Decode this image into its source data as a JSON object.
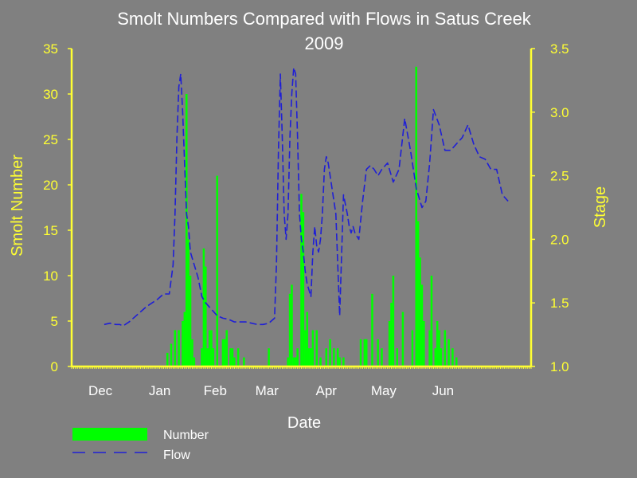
{
  "chart_data": {
    "type": "bar",
    "title_line1": "Smolt Numbers Compared with Flows in Satus Creek",
    "title_line2": "2009",
    "xlabel": "Date",
    "ylabel_left": "Smolt Number",
    "ylabel_right": "Stage",
    "ylim_left": [
      0,
      35
    ],
    "ylim_right": [
      1.0,
      3.5
    ],
    "yticks_left": [
      "0",
      "5",
      "10",
      "15",
      "20",
      "25",
      "30",
      "35"
    ],
    "yticks_right": [
      "1.0",
      "1.5",
      "2.0",
      "2.5",
      "3.0",
      "3.5"
    ],
    "months": [
      "Dec",
      "Jan",
      "Feb",
      "Mar",
      "Apr",
      "May",
      "Jun"
    ],
    "legend_position": "bottom-left",
    "colors": {
      "bars": "#00ff00",
      "flow": "#1f1fd6",
      "axis": "#ffff33",
      "background": "#808080"
    },
    "series": [
      {
        "name": "Number",
        "kind": "bar",
        "axis": "left",
        "x": [
          110,
          112,
          114,
          116,
          118,
          119,
          120,
          121,
          122,
          123,
          124,
          125,
          128,
          129,
          130,
          131,
          132,
          133,
          134,
          136,
          139,
          140,
          141,
          143,
          144,
          145,
          147,
          150,
          153,
          163,
          173,
          174,
          175,
          176,
          177,
          178,
          180,
          181,
          182,
          183,
          184,
          185,
          186,
          188,
          190,
          193,
          195,
          197,
          199,
          200,
          202,
          205,
          211,
          213,
          214,
          217,
          220,
          222,
          224,
          226,
          227,
          228,
          230,
          233,
          236,
          238,
          240,
          241,
          242,
          243,
          244,
          246,
          247,
          248,
          250,
          251,
          252,
          253,
          255,
          257,
          259,
          261
        ],
        "values": [
          1.5,
          2.5,
          4,
          4,
          5,
          6,
          30,
          14,
          10,
          3,
          1,
          0,
          2,
          13,
          11,
          2,
          4,
          4,
          2,
          21,
          3,
          3,
          4,
          2,
          2,
          1,
          2,
          1,
          0,
          2,
          1,
          8,
          9,
          1,
          1,
          2,
          19,
          17,
          4,
          6,
          2,
          2,
          4,
          4,
          1,
          2,
          3,
          2,
          2,
          1,
          1,
          0,
          3,
          3,
          3,
          8,
          3,
          2,
          0,
          5,
          7,
          10,
          2,
          6,
          0,
          4,
          33,
          16,
          12,
          9,
          5,
          0,
          4,
          10,
          2,
          5,
          4,
          2,
          4,
          3,
          2,
          1
        ]
      },
      {
        "name": "Flow",
        "kind": "line",
        "axis": "right",
        "x": [
          77,
          80,
          83,
          85,
          87,
          90,
          93,
          96,
          99,
          102,
          105,
          108,
          111,
          113,
          114,
          115,
          116,
          117,
          118,
          119,
          120,
          121,
          122,
          124,
          126,
          128,
          130,
          133,
          136,
          139,
          142,
          145,
          148,
          151,
          154,
          157,
          160,
          163,
          166,
          167,
          168,
          169,
          170,
          171,
          172,
          173,
          174,
          175,
          176,
          177,
          178,
          179,
          180,
          181,
          182,
          183,
          184,
          185,
          186,
          187,
          188,
          189,
          190,
          191,
          192,
          193,
          194,
          196,
          198,
          200,
          202,
          204,
          205,
          206,
          207,
          208,
          210,
          212,
          214,
          216,
          218,
          220,
          222,
          225,
          228,
          231,
          234,
          237,
          240,
          243,
          245,
          247,
          249,
          252,
          255,
          258,
          261,
          264,
          267,
          270,
          273,
          276,
          279,
          282,
          285,
          288
        ],
        "values": [
          1.33,
          1.34,
          1.33,
          1.33,
          1.32,
          1.35,
          1.39,
          1.43,
          1.47,
          1.5,
          1.53,
          1.57,
          1.57,
          1.8,
          2.2,
          2.8,
          3.2,
          3.3,
          3.0,
          2.6,
          2.2,
          2.1,
          1.9,
          1.8,
          1.7,
          1.55,
          1.5,
          1.45,
          1.4,
          1.38,
          1.37,
          1.35,
          1.35,
          1.35,
          1.34,
          1.33,
          1.33,
          1.34,
          1.38,
          1.8,
          2.7,
          3.3,
          2.8,
          2.2,
          2.0,
          2.2,
          2.8,
          3.15,
          3.35,
          3.3,
          2.8,
          2.2,
          2.0,
          1.9,
          1.75,
          1.65,
          1.6,
          1.55,
          1.9,
          2.1,
          1.95,
          1.9,
          2.0,
          2.2,
          2.55,
          2.65,
          2.6,
          2.4,
          2.2,
          1.4,
          2.35,
          2.2,
          2.1,
          2.05,
          2.1,
          2.05,
          2.0,
          2.3,
          2.55,
          2.58,
          2.55,
          2.5,
          2.55,
          2.6,
          2.45,
          2.55,
          2.95,
          2.7,
          2.4,
          2.25,
          2.3,
          2.6,
          3.02,
          2.9,
          2.7,
          2.7,
          2.75,
          2.8,
          2.9,
          2.75,
          2.65,
          2.63,
          2.55,
          2.55,
          2.35,
          2.3
        ]
      }
    ]
  }
}
